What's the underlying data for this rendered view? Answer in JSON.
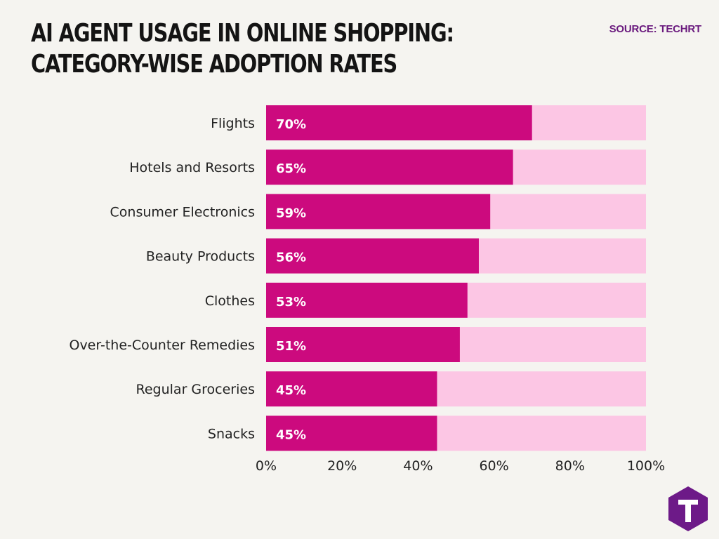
{
  "header": {
    "title_line1": "AI AGENT USAGE IN ONLINE SHOPPING:",
    "title_line2": "CATEGORY-WISE ADOPTION RATES",
    "source": "SOURCE: TECHRT"
  },
  "colors": {
    "bar_fill": "#cc0a7e",
    "bar_track": "#fcc6e4",
    "bar_text": "#ffffff",
    "axis_text": "#222222",
    "logo": "#6d1a88"
  },
  "logo": {
    "icon": "techrt-hexagon-logo-icon"
  },
  "chart_data": {
    "type": "bar",
    "orientation": "horizontal",
    "title": "AI AGENT USAGE IN ONLINE SHOPPING: CATEGORY-WISE ADOPTION RATES",
    "categories": [
      "Flights",
      "Hotels and Resorts",
      "Consumer Electronics",
      "Beauty Products",
      "Clothes",
      "Over-the-Counter Remedies",
      "Regular Groceries",
      "Snacks"
    ],
    "values": [
      70,
      65,
      59,
      56,
      53,
      51,
      45,
      45
    ],
    "data_labels": [
      "70%",
      "65%",
      "59%",
      "56%",
      "53%",
      "51%",
      "45%",
      "45%"
    ],
    "xlim": [
      0,
      100
    ],
    "xticks": [
      0,
      20,
      40,
      60,
      80,
      100
    ],
    "xtick_labels": [
      "0%",
      "20%",
      "40%",
      "60%",
      "80%",
      "100%"
    ],
    "xlabel": "",
    "ylabel": "",
    "grid": false,
    "legend": "none"
  }
}
